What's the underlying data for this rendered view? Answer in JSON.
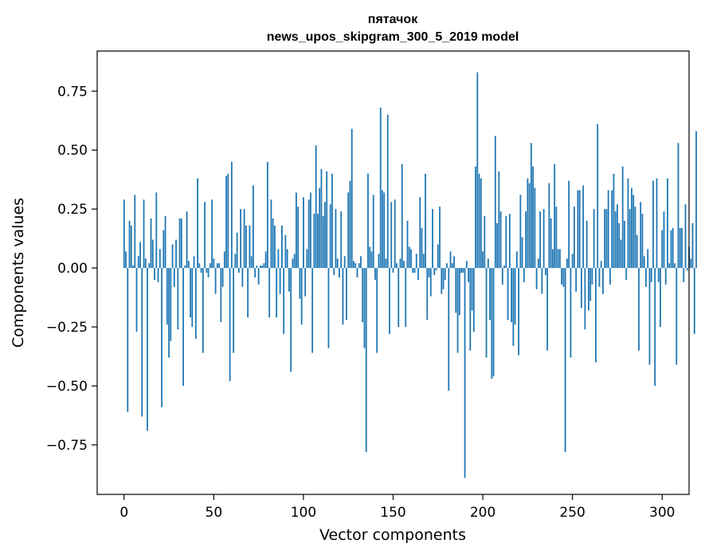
{
  "chart_data": {
    "type": "bar",
    "title": "пятачок",
    "subtitle": "news_upos_skipgram_300_5_2019 model",
    "xlabel": "Vector components",
    "ylabel": "Components values",
    "xlim": [
      -15,
      315
    ],
    "ylim": [
      -0.96,
      0.92
    ],
    "xticks": [
      0,
      50,
      100,
      150,
      200,
      250,
      300
    ],
    "yticks": [
      -0.75,
      -0.5,
      -0.25,
      0.0,
      0.25,
      0.5,
      0.75
    ],
    "ytick_labels": [
      "−0.75",
      "−0.50",
      "−0.25",
      "0.00",
      "0.25",
      "0.50",
      "0.75"
    ],
    "grid": false,
    "bar_color": "#1f77b4",
    "x_start": 0,
    "values": [
      0.29,
      0.07,
      -0.61,
      0.2,
      0.18,
      0.01,
      0.31,
      -0.27,
      0.05,
      0.11,
      -0.63,
      0.29,
      0.04,
      -0.69,
      0.02,
      0.21,
      0.12,
      -0.05,
      0.32,
      -0.06,
      0.08,
      -0.59,
      0.16,
      0.22,
      -0.24,
      -0.38,
      -0.31,
      0.1,
      -0.08,
      0.12,
      -0.26,
      0.21,
      0.21,
      -0.5,
      0.01,
      0.24,
      0.03,
      -0.21,
      -0.25,
      0.05,
      -0.3,
      0.38,
      0.02,
      -0.02,
      -0.36,
      0.28,
      -0.02,
      -0.04,
      0.02,
      0.29,
      0.04,
      -0.11,
      0.02,
      0.02,
      -0.23,
      -0.08,
      0.07,
      0.39,
      0.4,
      -0.48,
      0.45,
      -0.36,
      0.06,
      0.15,
      -0.02,
      0.25,
      -0.08,
      0.25,
      0.18,
      -0.21,
      0.18,
      0.05,
      0.35,
      -0.04,
      0.01,
      -0.07,
      0.01,
      0.01,
      0.02,
      0.07,
      0.45,
      -0.21,
      0.29,
      0.21,
      0.18,
      -0.21,
      0.08,
      -0.11,
      0.18,
      -0.28,
      0.14,
      0.08,
      -0.1,
      -0.44,
      0.04,
      0.06,
      0.32,
      0.26,
      -0.13,
      -0.24,
      0.3,
      -0.12,
      0.08,
      0.29,
      0.32,
      -0.36,
      0.23,
      0.52,
      0.23,
      0.34,
      0.42,
      0.22,
      0.28,
      0.41,
      -0.34,
      0.27,
      0.4,
      -0.03,
      0.25,
      0.04,
      -0.04,
      0.24,
      -0.24,
      0.05,
      -0.22,
      0.32,
      0.37,
      0.59,
      0.03,
      0.02,
      -0.04,
      0.02,
      0.05,
      -0.23,
      -0.34,
      -0.78,
      0.4,
      0.09,
      0.07,
      0.31,
      -0.05,
      -0.36,
      0.06,
      0.68,
      0.33,
      0.32,
      0.04,
      0.65,
      -0.28,
      0.28,
      -0.02,
      0.29,
      0.02,
      -0.25,
      0.04,
      0.44,
      0.03,
      -0.25,
      0.2,
      0.09,
      0.08,
      -0.02,
      -0.02,
      0.06,
      -0.05,
      0.3,
      0.17,
      0.06,
      0.4,
      -0.22,
      -0.04,
      -0.12,
      0.25,
      -0.03,
      -0.01,
      0.1,
      0.26,
      -0.11,
      -0.09,
      -0.05,
      0.02,
      -0.52,
      0.07,
      0.02,
      0.05,
      -0.19,
      -0.36,
      -0.2,
      -0.02,
      -0.02,
      -0.89,
      0.03,
      -0.06,
      -0.35,
      -0.18,
      -0.27,
      0.43,
      0.83,
      0.4,
      0.38,
      0.07,
      0.22,
      -0.38,
      0.04,
      -0.22,
      -0.47,
      -0.46,
      0.56,
      0.19,
      0.41,
      0.24,
      -0.07,
      0.01,
      0.22,
      -0.22,
      0.23,
      -0.23,
      -0.33,
      -0.24,
      0.07,
      -0.37,
      0.31,
      0.13,
      -0.06,
      0.24,
      0.38,
      0.36,
      0.53,
      0.43,
      0.34,
      -0.09,
      0.04,
      0.24,
      -0.11,
      0.25,
      -0.03,
      -0.35,
      0.36,
      0.21,
      0.08,
      0.44,
      0.26,
      0.08,
      0.08,
      -0.07,
      -0.08,
      -0.78,
      0.04,
      0.37,
      -0.38,
      0.06,
      0.26,
      -0.1,
      0.33,
      0.33,
      -0.17,
      0.35,
      -0.26,
      0.2,
      -0.18,
      -0.14,
      -0.07,
      0.25,
      -0.4,
      0.61,
      -0.08,
      0.03,
      -0.11,
      0.25,
      0.25,
      0.33,
      -0.07,
      0.33,
      0.4,
      0.24,
      0.27,
      0.19,
      0.12,
      0.43,
      0.2,
      -0.05,
      0.38,
      0.25,
      0.34,
      0.31,
      0.26,
      0.14,
      -0.35,
      0.28,
      0.23,
      0.05,
      -0.08,
      0.08,
      -0.41,
      -0.06,
      0.37,
      -0.5,
      0.38,
      -0.06,
      -0.25,
      0.16,
      0.24,
      -0.07,
      0.38,
      0.02,
      0.16,
      0.17,
      0.02,
      -0.41,
      0.53,
      0.17,
      0.17,
      -0.06,
      0.27,
      -0.01,
      0.09,
      0.04,
      0.19,
      -0.28,
      0.58
    ]
  }
}
